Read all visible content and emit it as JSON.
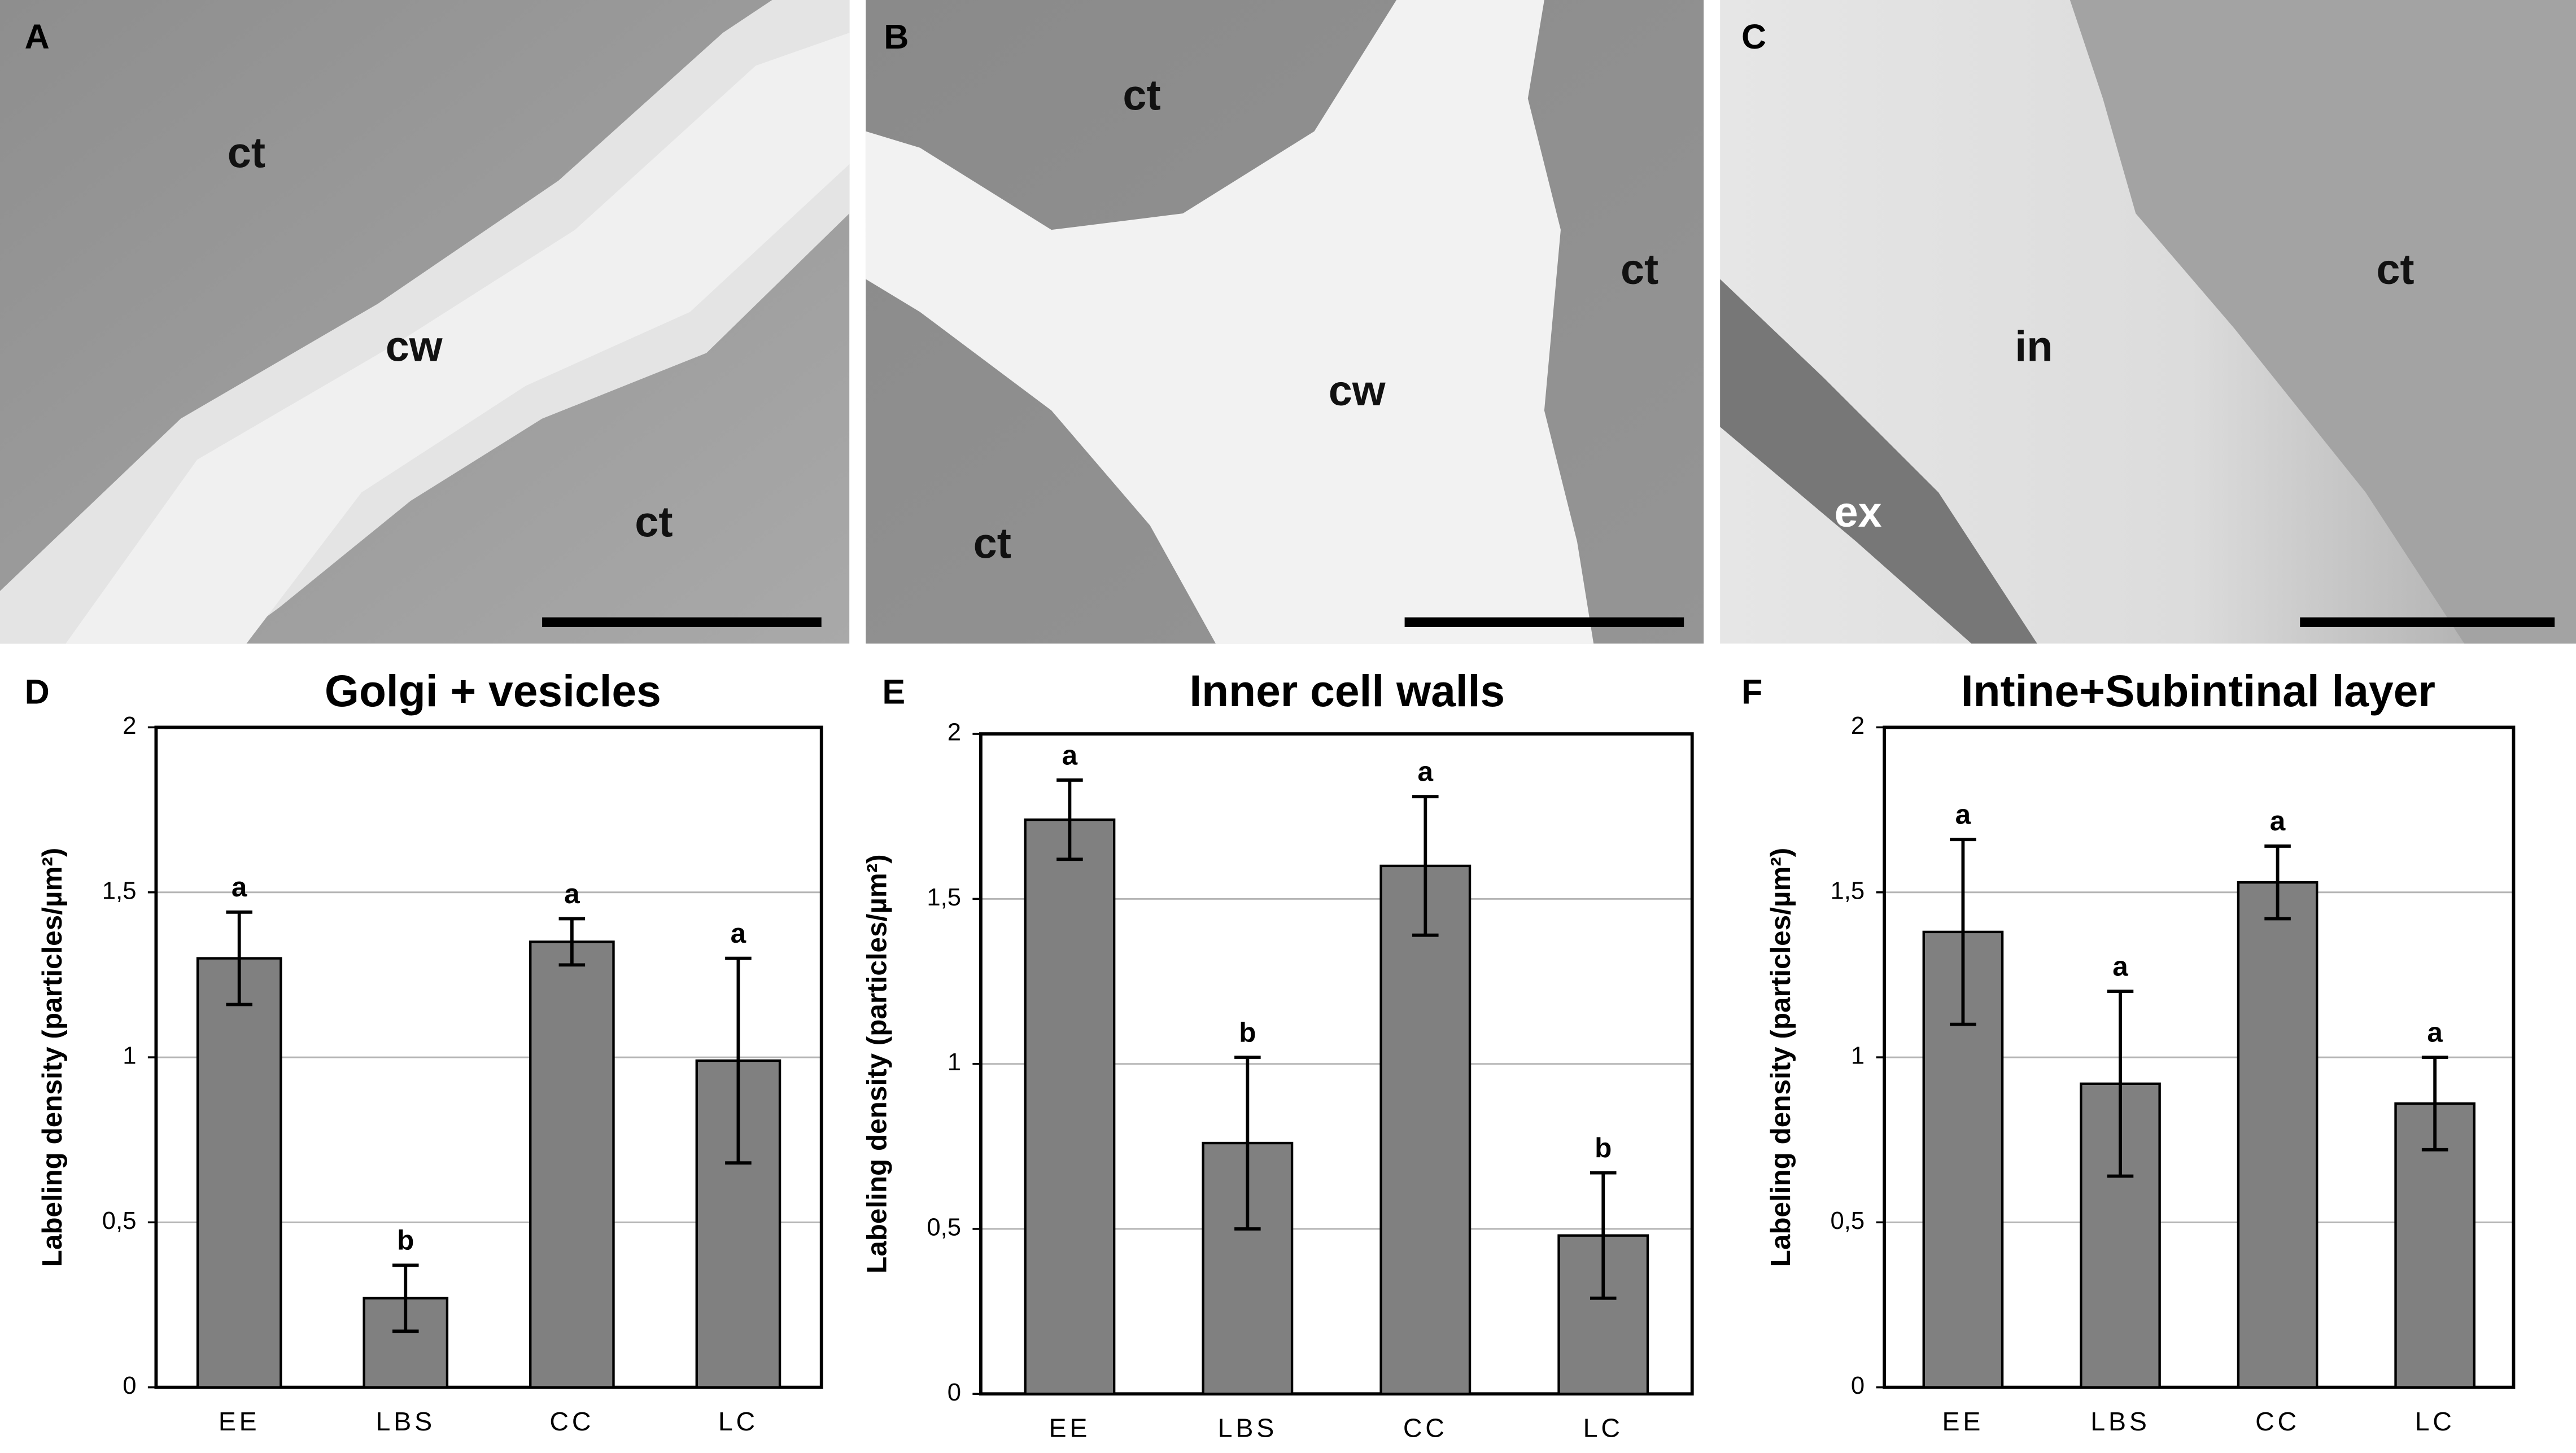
{
  "micrographs": [
    {
      "panel": "A",
      "labels": [
        "ct",
        "cw",
        "ct"
      ]
    },
    {
      "panel": "B",
      "labels": [
        "ct",
        "ct",
        "cw",
        "ct"
      ]
    },
    {
      "panel": "C",
      "labels": [
        "ct",
        "in",
        "ex"
      ]
    }
  ],
  "chart_data": [
    {
      "type": "bar",
      "panel": "D",
      "title": "Golgi + vesicles",
      "y_label": "Labeling density (particles/µm²)",
      "categories": [
        "EE",
        "LBS",
        "CC",
        "LC"
      ],
      "values": [
        1.3,
        0.27,
        1.35,
        0.99
      ],
      "errors": [
        0.14,
        0.1,
        0.07,
        0.31
      ],
      "annotations": [
        "a",
        "b",
        "a",
        "a"
      ],
      "color": "#808080",
      "ylim": [
        0,
        2
      ],
      "yticks": [
        0,
        {
          "value": 0.5,
          "label": "0,5"
        },
        1,
        {
          "value": 1.5,
          "label": "1,5"
        },
        2
      ],
      "grid": true
    },
    {
      "type": "bar",
      "panel": "E",
      "title": "Inner cell walls",
      "y_label": "Labeling density (particles/µm²)",
      "categories": [
        "EE",
        "LBS",
        "CC",
        "LC"
      ],
      "values": [
        1.74,
        0.76,
        1.6,
        0.48
      ],
      "errors": [
        0.12,
        0.26,
        0.21,
        0.19
      ],
      "annotations": [
        "a",
        "b",
        "a",
        "b"
      ],
      "color": "#808080",
      "ylim": [
        0,
        2
      ],
      "yticks": [
        0,
        {
          "value": 0.5,
          "label": "0,5"
        },
        1,
        {
          "value": 1.5,
          "label": "1,5"
        },
        2
      ],
      "grid": true
    },
    {
      "type": "bar",
      "panel": "F",
      "title": "Intine+Subintinal layer",
      "y_label": "Labeling density (particles/µm²)",
      "categories": [
        "EE",
        "LBS",
        "CC",
        "LC"
      ],
      "values": [
        1.38,
        0.92,
        1.53,
        0.86
      ],
      "errors": [
        0.28,
        0.28,
        0.11,
        0.14
      ],
      "annotations": [
        "a",
        "a",
        "a",
        "a"
      ],
      "color": "#808080",
      "ylim": [
        0,
        2
      ],
      "yticks": [
        0,
        {
          "value": 0.5,
          "label": "0,5"
        },
        1,
        {
          "value": 1.5,
          "label": "1,5"
        },
        2
      ],
      "grid": true
    }
  ]
}
